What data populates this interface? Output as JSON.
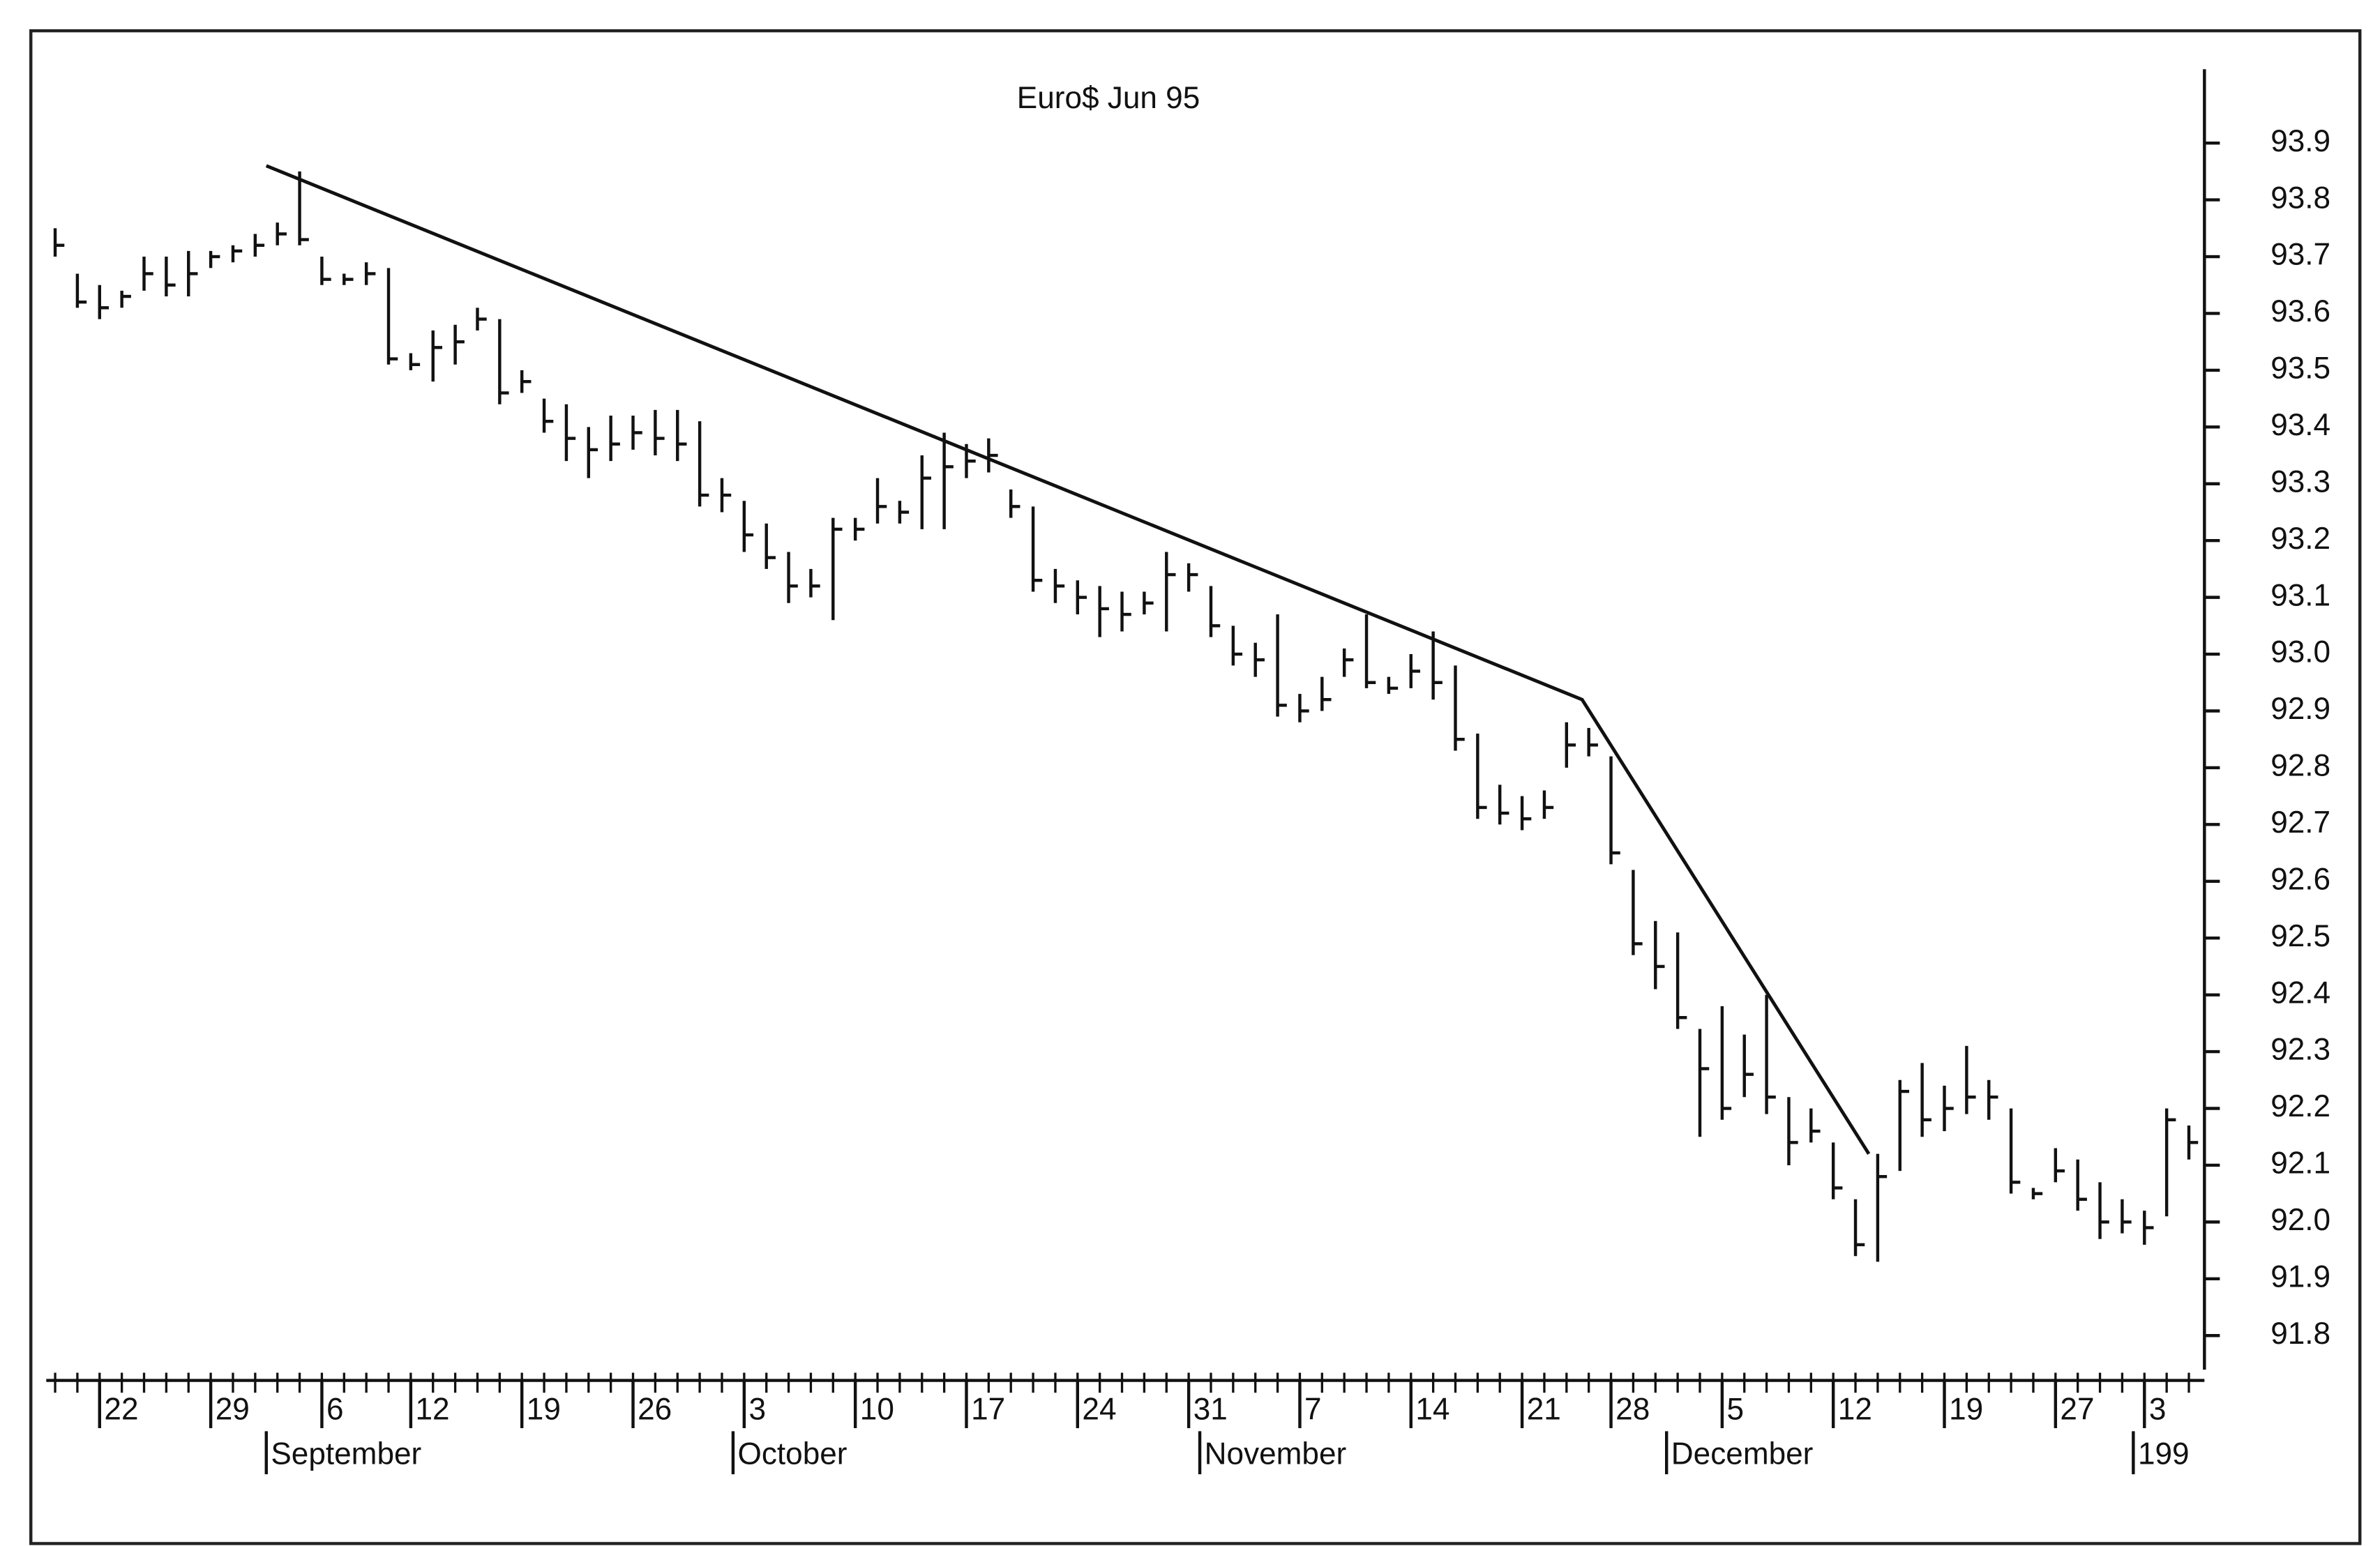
{
  "chart_data": {
    "type": "ohlc",
    "title": "Euro$ Jun 95",
    "categories": [
      null,
      null,
      null,
      null,
      null,
      null,
      null,
      null,
      null,
      null,
      null,
      null,
      null,
      null,
      null,
      null,
      null,
      null,
      null,
      null,
      null,
      null,
      null,
      null,
      null,
      null,
      null,
      null,
      null,
      null,
      null,
      null,
      null,
      null,
      null,
      null,
      null,
      null,
      null,
      null,
      null,
      null,
      null,
      null,
      null,
      null,
      null,
      null,
      null,
      null,
      null,
      null,
      null,
      null,
      null,
      null,
      null,
      null,
      null,
      null,
      null,
      null,
      null,
      null,
      null,
      null,
      null,
      null,
      null,
      null,
      null,
      null,
      null,
      null,
      null,
      null,
      null,
      null,
      null,
      null,
      null,
      null,
      null,
      null,
      null,
      null,
      null,
      null,
      null,
      null,
      null,
      null,
      null,
      null,
      null,
      null,
      null
    ],
    "high": [
      93.75,
      93.67,
      93.65,
      93.64,
      93.7,
      93.7,
      93.71,
      93.71,
      93.72,
      93.74,
      93.76,
      93.85,
      93.7,
      93.67,
      93.69,
      93.68,
      93.53,
      93.57,
      93.58,
      93.61,
      93.59,
      93.5,
      93.45,
      93.44,
      93.4,
      93.42,
      93.42,
      93.43,
      93.43,
      93.41,
      93.31,
      93.27,
      93.23,
      93.18,
      93.15,
      93.24,
      93.24,
      93.31,
      93.27,
      93.35,
      93.39,
      93.37,
      93.38,
      93.29,
      93.26,
      93.15,
      93.13,
      93.12,
      93.11,
      93.11,
      93.18,
      93.16,
      93.12,
      93.05,
      93.02,
      93.07,
      92.93,
      92.96,
      93.01,
      93.07,
      92.96,
      93.0,
      93.04,
      92.98,
      92.86,
      92.77,
      92.75,
      92.76,
      92.88,
      92.87,
      92.82,
      92.62,
      92.53,
      92.51,
      92.34,
      92.38,
      92.33,
      92.4,
      92.22,
      92.2,
      92.14,
      92.04,
      92.12,
      92.25,
      92.28,
      92.24,
      92.31,
      92.25,
      92.2,
      92.06,
      92.13,
      92.11,
      92.07,
      92.04,
      92.02,
      92.2,
      92.17
    ],
    "low": [
      93.7,
      93.61,
      93.59,
      93.61,
      93.64,
      93.63,
      93.63,
      93.68,
      93.69,
      93.7,
      93.72,
      93.72,
      93.65,
      93.65,
      93.65,
      93.51,
      93.5,
      93.48,
      93.51,
      93.57,
      93.44,
      93.46,
      93.39,
      93.34,
      93.31,
      93.34,
      93.36,
      93.35,
      93.34,
      93.26,
      93.25,
      93.18,
      93.15,
      93.09,
      93.1,
      93.06,
      93.2,
      93.23,
      93.23,
      93.22,
      93.22,
      93.31,
      93.32,
      93.24,
      93.11,
      93.09,
      93.07,
      93.03,
      93.04,
      93.07,
      93.04,
      93.11,
      93.03,
      92.98,
      92.96,
      92.89,
      92.88,
      92.9,
      92.96,
      92.94,
      92.93,
      92.94,
      92.92,
      92.83,
      92.71,
      92.7,
      92.69,
      92.71,
      92.8,
      92.82,
      92.63,
      92.47,
      92.41,
      92.34,
      92.15,
      92.18,
      92.22,
      92.19,
      92.1,
      92.14,
      92.04,
      91.94,
      91.93,
      92.09,
      92.15,
      92.16,
      92.19,
      92.18,
      92.05,
      92.04,
      92.07,
      92.02,
      91.97,
      91.98,
      91.96,
      92.01,
      92.11
    ],
    "close": [
      93.72,
      93.62,
      93.61,
      93.63,
      93.67,
      93.65,
      93.67,
      93.7,
      93.71,
      93.72,
      93.74,
      93.73,
      93.66,
      93.66,
      93.67,
      93.52,
      93.51,
      93.54,
      93.55,
      93.59,
      93.46,
      93.48,
      93.41,
      93.38,
      93.36,
      93.37,
      93.39,
      93.38,
      93.37,
      93.28,
      93.28,
      93.21,
      93.17,
      93.12,
      93.12,
      93.22,
      93.22,
      93.26,
      93.25,
      93.31,
      93.33,
      93.34,
      93.35,
      93.26,
      93.13,
      93.12,
      93.1,
      93.08,
      93.07,
      93.09,
      93.14,
      93.14,
      93.05,
      93.0,
      92.99,
      92.91,
      92.9,
      92.92,
      92.99,
      92.95,
      92.94,
      92.97,
      92.95,
      92.85,
      92.73,
      92.72,
      92.71,
      92.73,
      92.84,
      92.84,
      92.65,
      92.49,
      92.45,
      92.36,
      92.27,
      92.2,
      92.26,
      92.22,
      92.14,
      92.16,
      92.06,
      91.96,
      92.08,
      92.23,
      92.18,
      92.2,
      92.22,
      92.22,
      92.07,
      92.05,
      92.09,
      92.04,
      92.0,
      92.0,
      91.99,
      92.18,
      92.14
    ],
    "color": "#111111",
    "trendline": {
      "x": [
        9.5,
        68.7,
        81.6
      ],
      "values": [
        93.86,
        92.92,
        92.12
      ]
    },
    "xlim": [
      -0.4,
      96.7
    ],
    "xticks": [
      {
        "value": 2,
        "label": "22"
      },
      {
        "value": 7,
        "label": "29"
      },
      {
        "value": 12,
        "label": "6"
      },
      {
        "value": 16,
        "label": "12"
      },
      {
        "value": 21,
        "label": "19"
      },
      {
        "value": 26,
        "label": "26"
      },
      {
        "value": 31,
        "label": "3"
      },
      {
        "value": 36,
        "label": "10"
      },
      {
        "value": 41,
        "label": "17"
      },
      {
        "value": 46,
        "label": "24"
      },
      {
        "value": 51,
        "label": "31"
      },
      {
        "value": 56,
        "label": "7"
      },
      {
        "value": 61,
        "label": "14"
      },
      {
        "value": 66,
        "label": "21"
      },
      {
        "value": 70,
        "label": "28"
      },
      {
        "value": 75,
        "label": "5"
      },
      {
        "value": 80,
        "label": "12"
      },
      {
        "value": 85,
        "label": "19"
      },
      {
        "value": 90,
        "label": "27"
      },
      {
        "value": 94,
        "label": "3"
      }
    ],
    "month_ticks": [
      {
        "value": 9.5,
        "label": "September"
      },
      {
        "value": 30.5,
        "label": "October"
      },
      {
        "value": 51.5,
        "label": "November"
      },
      {
        "value": 72.5,
        "label": "December"
      },
      {
        "value": 93.5,
        "label": "199"
      }
    ],
    "ylim": [
      91.74,
      94.03
    ],
    "yticks": [
      93.9,
      93.8,
      93.7,
      93.6,
      93.5,
      93.4,
      93.3,
      93.2,
      93.1,
      {
        "value": 93.0,
        "label": "93.0"
      },
      92.9,
      92.8,
      92.7,
      92.6,
      92.5,
      92.4,
      92.3,
      92.2,
      92.1,
      {
        "value": 92.0,
        "label": "92.0"
      },
      91.9,
      91.8
    ],
    "grid": false
  }
}
